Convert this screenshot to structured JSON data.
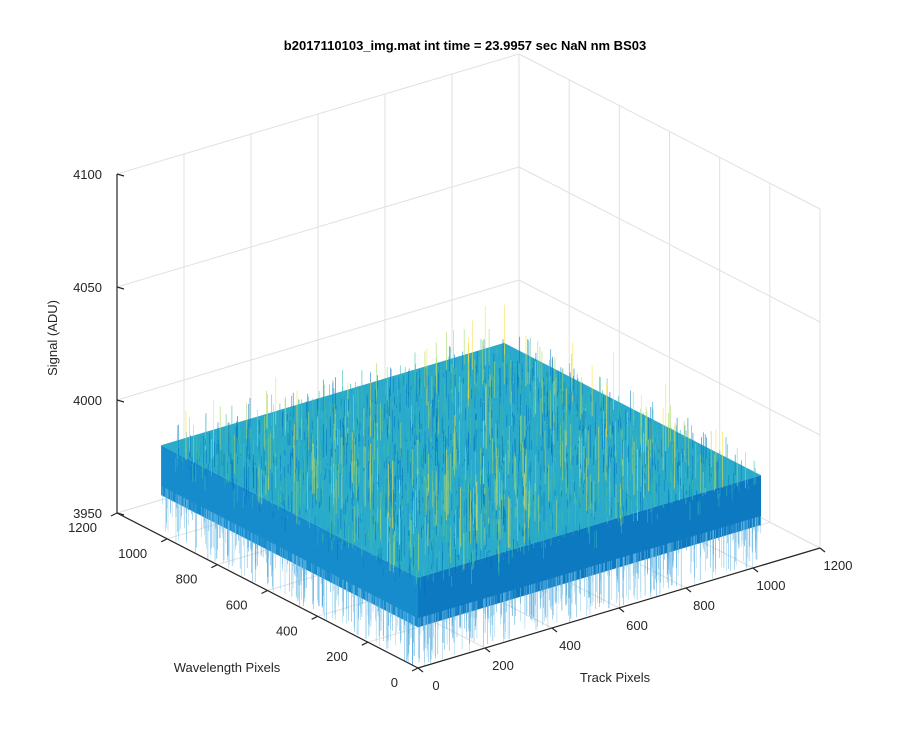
{
  "chart_data": {
    "type": "surface",
    "title": "b2017110103_img.mat int time = 23.9957 sec  NaN nm BS03",
    "xlabel": "Track Pixels",
    "ylabel": "Wavelength Pixels",
    "zlabel": "Signal (ADU)",
    "xlim": [
      0,
      1200
    ],
    "ylim": [
      0,
      1200
    ],
    "zlim": [
      3950,
      4100
    ],
    "x_ticks": [
      0,
      200,
      400,
      600,
      800,
      1000,
      1200
    ],
    "y_ticks": [
      0,
      200,
      400,
      600,
      800,
      1000,
      1200
    ],
    "z_ticks": [
      3950,
      4000,
      4050,
      4100
    ],
    "x_data_range": [
      0,
      1024
    ],
    "y_data_range": [
      0,
      1024
    ],
    "signal_mean": 3990,
    "signal_spread": [
      3975,
      4010
    ],
    "grid": true,
    "colormap": "parula",
    "colors": {
      "low": "#0072bd",
      "mid": "#1fa6c8",
      "high": "#a6d96a",
      "peak": "#f9e040"
    }
  }
}
